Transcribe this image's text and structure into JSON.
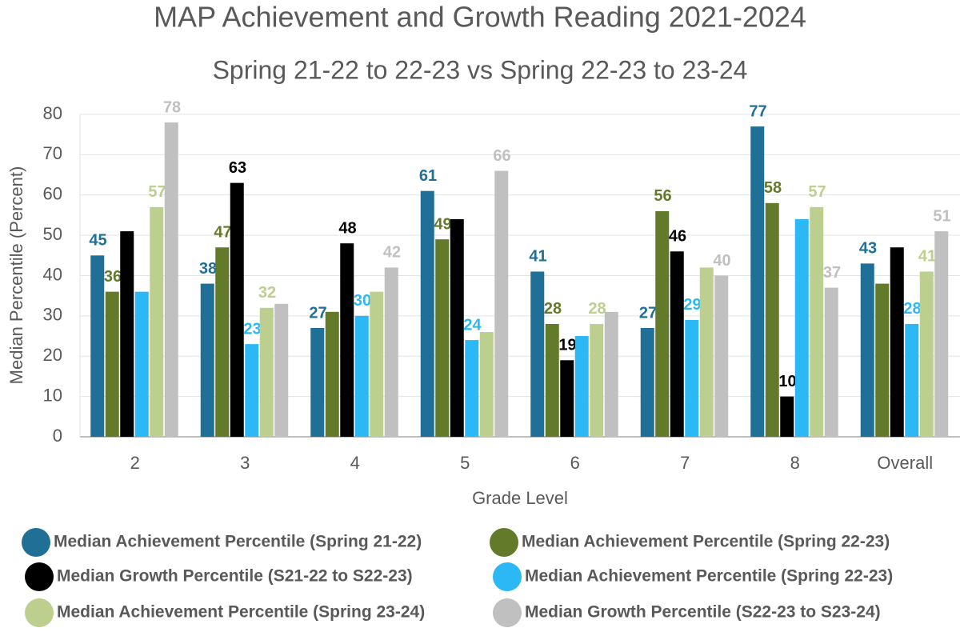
{
  "chart_data": {
    "type": "bar",
    "title": "MAP Achievement and Growth Reading 2021-2024",
    "subtitle": "Spring 21-22 to 22-23 vs Spring 22-23 to 23-24",
    "x_label": "Grade Level",
    "y_label": "Median Percentile (Percent)",
    "categories": [
      "2",
      "3",
      "4",
      "5",
      "6",
      "7",
      "8",
      "Overall"
    ],
    "ylim": [
      0,
      80
    ],
    "yticks": [
      0,
      10,
      20,
      30,
      40,
      50,
      60,
      70,
      80
    ],
    "grid": true,
    "legend": "bottom",
    "series": [
      {
        "name": "Median Achievement Percentile (Spring 21-22)",
        "color": "#1f6f96",
        "values": [
          45,
          38,
          27,
          61,
          41,
          27,
          77,
          43
        ],
        "value_labels": [
          "45",
          "38",
          "27",
          "61",
          "41",
          "27",
          "77",
          "43"
        ]
      },
      {
        "name": "Median Achievement Percentile (Spring 22-23)",
        "color": "#647a2b",
        "values": [
          36,
          47,
          31,
          49,
          28,
          56,
          58,
          38
        ],
        "value_labels": [
          "36",
          "47",
          null,
          "49",
          "28",
          "56",
          "58",
          null
        ]
      },
      {
        "name": "Median Growth Percentile (S21-22 to S22-23)",
        "color": "#000000",
        "values": [
          51,
          63,
          48,
          54,
          19,
          46,
          10,
          47
        ],
        "value_labels": [
          null,
          "63",
          "48",
          null,
          "19",
          "46",
          "10",
          null
        ]
      },
      {
        "name": "Median Achievement Percentile (Spring 22-23)",
        "color": "#2bb8f5",
        "values": [
          36,
          23,
          30,
          24,
          25,
          29,
          54,
          28
        ],
        "value_labels": [
          null,
          "23",
          "30",
          "24",
          null,
          "29",
          null,
          "28"
        ]
      },
      {
        "name": "Median Achievement Percentile (Spring 23-24)",
        "color": "#bccf8f",
        "values": [
          57,
          32,
          36,
          26,
          28,
          42,
          57,
          41
        ],
        "value_labels": [
          "57",
          "32",
          null,
          null,
          "28",
          null,
          "57",
          "41"
        ]
      },
      {
        "name": "Median Growth Percentile (S22-23 to S23-24)",
        "color": "#c0c0c0",
        "values": [
          78,
          33,
          42,
          66,
          31,
          40,
          37,
          51
        ],
        "value_labels": [
          "78",
          null,
          "42",
          "66",
          null,
          "40",
          "37",
          "51"
        ]
      }
    ]
  }
}
